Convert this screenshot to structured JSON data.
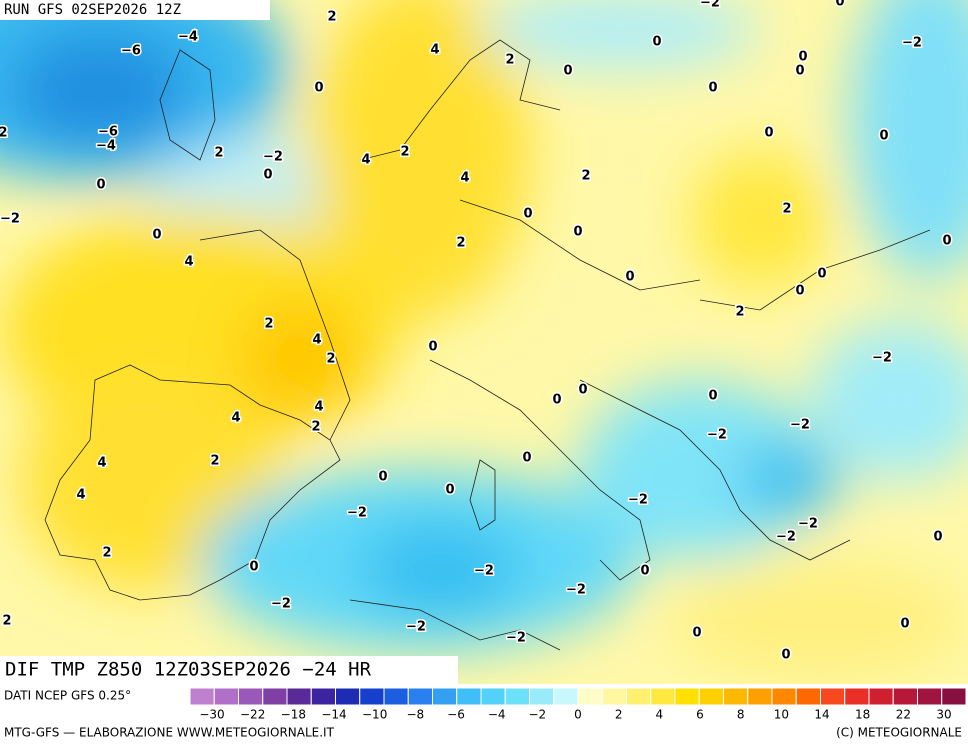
{
  "header": {
    "run": "RUN GFS 02SEP2026 12Z"
  },
  "map": {
    "title": "DIF TMP Z850 12Z03SEP2026 −24 HR",
    "contour_labels": [
      "2",
      "−4",
      "−6",
      "4",
      "2",
      "0",
      "0",
      "0",
      "0",
      "−2",
      "0",
      "0",
      "−6",
      "−4",
      "2",
      "2",
      "−2",
      "2",
      "4",
      "0",
      "4",
      "2",
      "0",
      "0",
      "0",
      "−2",
      "0",
      "0",
      "2",
      "0",
      "2",
      "0",
      "4",
      "0",
      "0",
      "0",
      "2",
      "4",
      "2",
      "2",
      "0",
      "−2",
      "0",
      "0",
      "0",
      "4",
      "4",
      "2",
      "−2",
      "−2",
      "4",
      "2",
      "0",
      "0",
      "4",
      "0",
      "−2",
      "−2",
      "−2",
      "−2",
      "0",
      "2",
      "0",
      "−2",
      "0",
      "−2",
      "−2",
      "2",
      "−2",
      "0",
      "−2",
      "0",
      "0",
      "−2",
      "0"
    ]
  },
  "colorbar": {
    "source": "DATI NCEP GFS 0.25°",
    "colors": [
      "#c080d0",
      "#b070c8",
      "#9a58b8",
      "#7f3fa4",
      "#5a2b98",
      "#3c24a0",
      "#1e2cb4",
      "#1440cc",
      "#1c5ee0",
      "#2a80ee",
      "#34a0f4",
      "#40bef8",
      "#52d2f8",
      "#6ce0f8",
      "#98ecfa",
      "#c8f8fc",
      "#fffcc8",
      "#fff8a0",
      "#fff070",
      "#ffe840",
      "#ffe000",
      "#ffd000",
      "#ffb800",
      "#ffa000",
      "#ff8800",
      "#ff6800",
      "#f84820",
      "#e83028",
      "#d02030",
      "#b81838",
      "#a01440",
      "#881040"
    ],
    "labels": [
      "−30",
      "−22",
      "−18",
      "−14",
      "−10",
      "−8",
      "−6",
      "−4",
      "−2",
      "0",
      "2",
      "4",
      "6",
      "8",
      "10",
      "14",
      "18",
      "22",
      "30"
    ]
  },
  "footer": {
    "left": "MTG-GFS — ELABORAZIONE WWW.METEOGIORNALE.IT",
    "right": "(C) METEOGIORNALE"
  }
}
